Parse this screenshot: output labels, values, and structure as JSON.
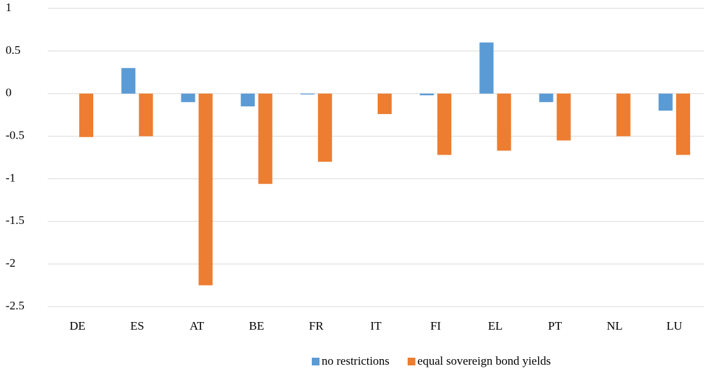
{
  "chart_data": {
    "type": "bar",
    "categories": [
      "DE",
      "ES",
      "AT",
      "BE",
      "FR",
      "IT",
      "FI",
      "EL",
      "PT",
      "NL",
      "LU"
    ],
    "series": [
      {
        "name": "no restrictions",
        "color": "#5b9bd5",
        "values": [
          0,
          0.3,
          -0.1,
          -0.15,
          -0.01,
          0,
          -0.02,
          0.6,
          -0.1,
          0,
          -0.2
        ]
      },
      {
        "name": "equal sovereign bond yields",
        "color": "#ed7d31",
        "values": [
          -0.51,
          -0.5,
          -2.25,
          -1.06,
          -0.8,
          -0.24,
          -0.72,
          -0.67,
          -0.55,
          -0.5,
          -0.72
        ]
      }
    ],
    "ylim": [
      -2.5,
      1
    ],
    "yticks": [
      1,
      0.5,
      0,
      -0.5,
      -1,
      -1.5,
      -2,
      -2.5
    ],
    "grid": true,
    "legend": "bottom"
  }
}
